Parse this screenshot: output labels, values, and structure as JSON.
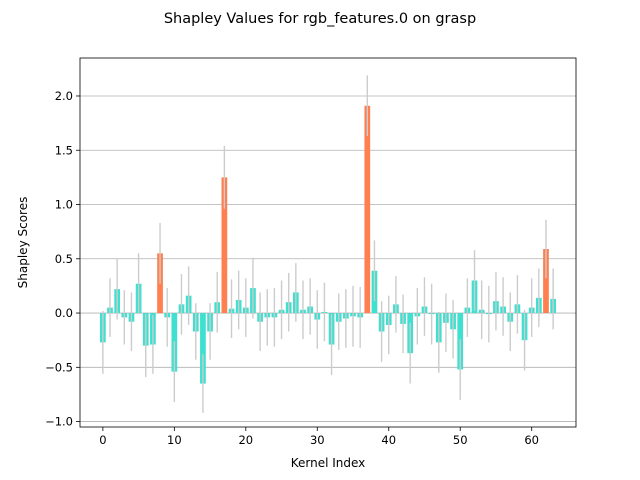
{
  "chart_data": {
    "type": "bar",
    "title": "Shapley Values for rgb_features.0 on grasp",
    "xlabel": "Kernel Index",
    "ylabel": "Shapley Scores",
    "xlim": [
      -3.2,
      66.2
    ],
    "ylim": [
      -1.05,
      2.35
    ],
    "xticks": [
      0,
      10,
      20,
      30,
      40,
      50,
      60
    ],
    "yticks": [
      -1.0,
      -0.5,
      0.0,
      0.5,
      1.0,
      1.5,
      2.0
    ],
    "ytick_labels": [
      "−1.0",
      "−0.5",
      "0.0",
      "0.5",
      "1.0",
      "1.5",
      "2.0"
    ],
    "grid": "horizontal",
    "highlight_threshold": 0.5,
    "colors": {
      "normal": "#40E0D0",
      "highlight": "#FF7F50",
      "error": "#CCCCCC",
      "grid": "#B0B0B0"
    },
    "x": [
      0,
      1,
      2,
      3,
      4,
      5,
      6,
      7,
      8,
      9,
      10,
      11,
      12,
      13,
      14,
      15,
      16,
      17,
      18,
      19,
      20,
      21,
      22,
      23,
      24,
      25,
      26,
      27,
      28,
      29,
      30,
      31,
      32,
      33,
      34,
      35,
      36,
      37,
      38,
      39,
      40,
      41,
      42,
      43,
      44,
      45,
      46,
      47,
      48,
      49,
      50,
      51,
      52,
      53,
      54,
      55,
      56,
      57,
      58,
      59,
      60,
      61,
      62,
      63
    ],
    "values": [
      -0.27,
      0.05,
      0.22,
      -0.04,
      -0.08,
      0.27,
      -0.3,
      -0.29,
      0.55,
      -0.04,
      -0.54,
      0.08,
      0.16,
      -0.17,
      -0.65,
      -0.17,
      0.1,
      1.25,
      0.04,
      0.12,
      0.05,
      0.23,
      -0.08,
      -0.04,
      -0.04,
      0.03,
      0.1,
      0.19,
      0.03,
      0.06,
      -0.06,
      0.01,
      -0.29,
      -0.08,
      -0.05,
      -0.03,
      -0.04,
      1.91,
      0.39,
      -0.17,
      -0.11,
      0.08,
      -0.1,
      -0.37,
      -0.03,
      0.06,
      -0.01,
      -0.27,
      -0.09,
      -0.15,
      -0.52,
      0.05,
      0.3,
      0.03,
      -0.01,
      0.11,
      0.06,
      -0.08,
      0.08,
      -0.25,
      0.05,
      0.14,
      0.59,
      0.13
    ],
    "errors": [
      0.29,
      0.27,
      0.28,
      0.25,
      0.27,
      0.28,
      0.29,
      0.27,
      0.28,
      0.27,
      0.28,
      0.28,
      0.27,
      0.26,
      0.27,
      0.26,
      0.28,
      0.29,
      0.27,
      0.27,
      0.27,
      0.28,
      0.27,
      0.26,
      0.27,
      0.27,
      0.27,
      0.27,
      0.27,
      0.26,
      0.27,
      0.27,
      0.28,
      0.26,
      0.27,
      0.28,
      0.28,
      0.28,
      0.28,
      0.28,
      0.27,
      0.26,
      0.27,
      0.28,
      0.26,
      0.27,
      0.28,
      0.28,
      0.27,
      0.27,
      0.28,
      0.27,
      0.28,
      0.27,
      0.26,
      0.27,
      0.27,
      0.27,
      0.27,
      0.28,
      0.27,
      0.27,
      0.27,
      0.28
    ]
  }
}
